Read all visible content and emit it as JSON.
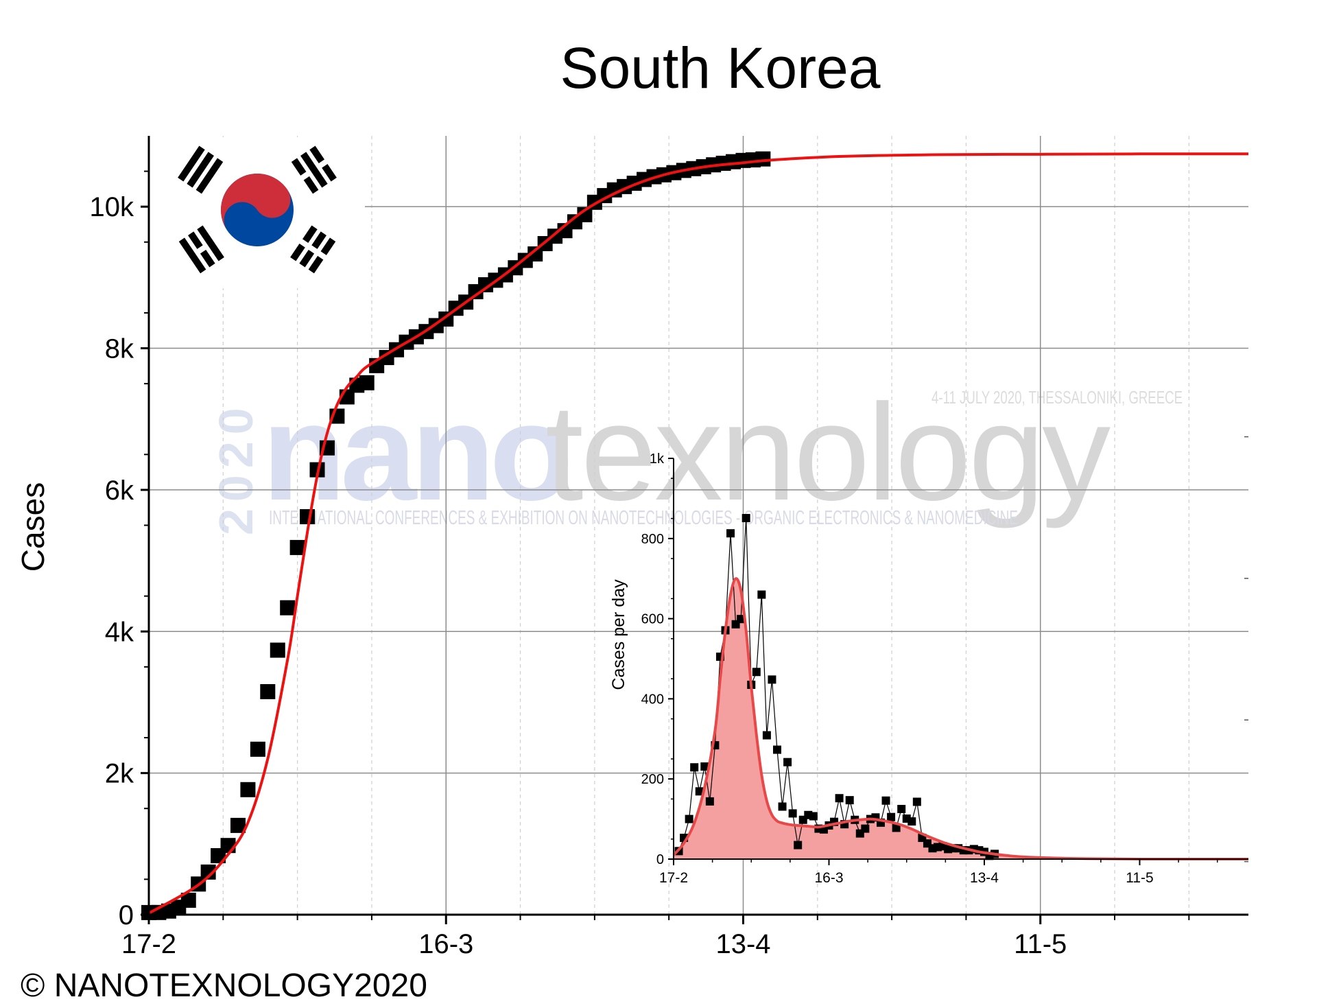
{
  "copyright": "© NANOTEXNOLOGY2020",
  "watermark": {
    "year": "2020",
    "word_a": "nano",
    "word_b": "texnology",
    "tagline": "INTERNATIONAL CONFERENCES & EXHIBITION ON NANOTECHNOLOGIES - ORGANIC ELECTRONICS & NANOMEDICINE",
    "event": "4-11 JULY 2020, THESSALONIKI, GREECE"
  },
  "flag": {
    "country": "South Korea",
    "red": "#CD2E3A",
    "blue": "#0047A0"
  },
  "colors": {
    "points": "#000000",
    "fit": "#ee1111",
    "inset_fill": "#f4a0a0",
    "inset_fit": "#e84848"
  },
  "chart_data": [
    {
      "type": "scatter",
      "title": "South Korea",
      "ylabel": "Cases",
      "xlabel": "",
      "x_ticks": [
        "17-2",
        "16-3",
        "13-4",
        "11-5"
      ],
      "y_ticks": [
        "0",
        "2k",
        "4k",
        "6k",
        "8k",
        "10k"
      ],
      "xlim": [
        0,
        111
      ],
      "ylim": [
        0,
        11000
      ],
      "grid": true,
      "series": [
        {
          "kind": "points",
          "x": [
            0,
            1,
            2,
            3,
            4,
            5,
            6,
            7,
            8,
            9,
            10,
            11,
            12,
            13,
            14,
            15,
            16,
            17,
            18,
            19,
            20,
            21,
            22,
            23,
            24,
            25,
            26,
            27,
            28,
            29,
            30,
            31,
            32,
            33,
            34,
            35,
            36,
            37,
            38,
            39,
            40,
            41,
            42,
            43,
            44,
            45,
            46,
            47,
            48,
            49,
            50,
            51,
            52,
            53,
            54,
            55,
            56,
            57,
            58,
            59,
            60,
            61,
            62
          ],
          "y": [
            30,
            31,
            51,
            104,
            204,
            433,
            602,
            833,
            977,
            1261,
            1766,
            2337,
            3150,
            3736,
            4335,
            5186,
            5621,
            6284,
            6593,
            7041,
            7313,
            7478,
            7513,
            7755,
            7869,
            7979,
            8086,
            8162,
            8236,
            8320,
            8413,
            8565,
            8652,
            8799,
            8897,
            8961,
            9037,
            9137,
            9241,
            9332,
            9478,
            9583,
            9661,
            9786,
            9887,
            10062,
            10156,
            10237,
            10284,
            10331,
            10384,
            10423,
            10450,
            10480,
            10512,
            10537,
            10564,
            10591,
            10613,
            10635,
            10653,
            10661,
            10674
          ]
        },
        {
          "kind": "fit",
          "x": [
            0,
            5,
            8,
            10,
            12,
            14,
            15,
            16,
            17,
            18,
            19,
            20,
            21,
            22,
            25,
            28,
            32,
            36,
            40,
            44,
            48,
            52,
            56,
            60,
            63,
            70,
            80,
            90,
            100,
            111
          ],
          "y": [
            20,
            420,
            850,
            1300,
            2200,
            3600,
            4500,
            5400,
            6200,
            6800,
            7200,
            7450,
            7600,
            7740,
            8000,
            8250,
            8650,
            9050,
            9500,
            9950,
            10250,
            10450,
            10560,
            10620,
            10660,
            10710,
            10735,
            10740,
            10745,
            10745
          ]
        }
      ]
    },
    {
      "type": "area",
      "inset": true,
      "ylabel": "Cases per day",
      "xlabel": "",
      "x_ticks": [
        "17-2",
        "16-3",
        "13-4",
        "11-5"
      ],
      "y_ticks": [
        "0",
        "200",
        "400",
        "600",
        "800",
        "1k"
      ],
      "xlim": [
        0,
        111
      ],
      "ylim": [
        0,
        1000
      ],
      "grid": false,
      "series": [
        {
          "kind": "points",
          "x": [
            1,
            2,
            3,
            4,
            5,
            6,
            7,
            8,
            9,
            10,
            11,
            12,
            13,
            14,
            15,
            16,
            17,
            18,
            19,
            20,
            21,
            22,
            23,
            24,
            25,
            26,
            27,
            28,
            29,
            30,
            31,
            32,
            33,
            34,
            35,
            36,
            37,
            38,
            39,
            40,
            41,
            42,
            43,
            44,
            45,
            46,
            47,
            48,
            49,
            50,
            51,
            52,
            53,
            54,
            55,
            56,
            57,
            58,
            59,
            60,
            61,
            62
          ],
          "y": [
            20,
            53,
            100,
            229,
            169,
            231,
            144,
            284,
            505,
            571,
            813,
            586,
            599,
            851,
            435,
            467,
            660,
            309,
            448,
            273,
            131,
            242,
            114,
            35,
            98,
            110,
            107,
            76,
            74,
            84,
            93,
            152,
            87,
            147,
            98,
            64,
            76,
            100,
            104,
            91,
            146,
            105,
            78,
            125,
            101,
            94,
            143,
            53,
            39,
            27,
            30,
            32,
            25,
            27,
            27,
            22,
            22,
            25,
            22,
            18,
            8,
            13
          ]
        },
        {
          "kind": "fit",
          "x": [
            0,
            2,
            4,
            6,
            8,
            9,
            10,
            11,
            12,
            13,
            14,
            15,
            16,
            17,
            18,
            19,
            20,
            21,
            22,
            23,
            24,
            26,
            28,
            30,
            32,
            34,
            36,
            38,
            40,
            42,
            44,
            46,
            48,
            50,
            52,
            54,
            56,
            58,
            60,
            65,
            70,
            80,
            90,
            100,
            111
          ],
          "y": [
            10,
            40,
            90,
            180,
            320,
            450,
            570,
            660,
            700,
            670,
            570,
            430,
            310,
            210,
            145,
            110,
            95,
            90,
            87,
            85,
            84,
            82,
            80,
            85,
            90,
            95,
            98,
            100,
            97,
            92,
            85,
            75,
            63,
            52,
            42,
            34,
            27,
            21,
            16,
            8,
            4,
            1,
            0,
            0,
            0
          ]
        }
      ]
    }
  ]
}
